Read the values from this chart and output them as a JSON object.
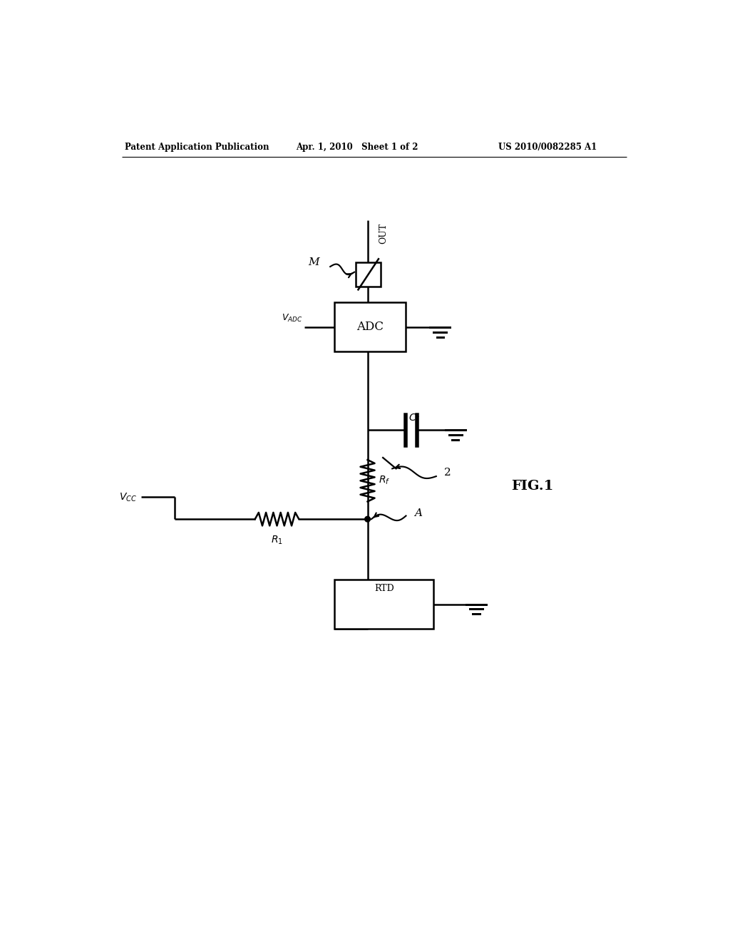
{
  "header_left": "Patent Application Publication",
  "header_center": "Apr. 1, 2010   Sheet 1 of 2",
  "header_right": "US 2010/0082285 A1",
  "figure_label": "FIG.1",
  "background": "#ffffff",
  "line_color": "#000000",
  "line_width": 1.8
}
